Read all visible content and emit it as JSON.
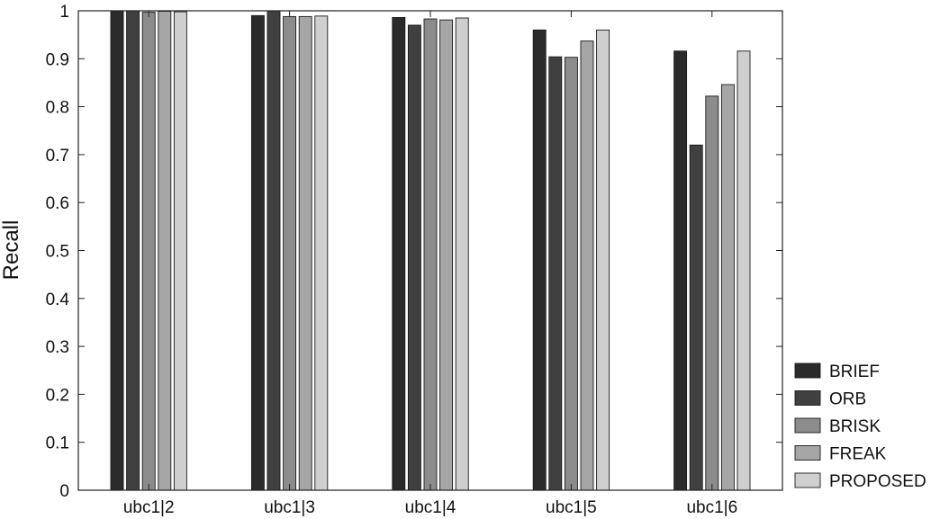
{
  "chart_data": {
    "type": "bar",
    "title": "",
    "xlabel": "",
    "ylabel": "Recall",
    "ylim": [
      0,
      1
    ],
    "yticks": [
      "0",
      "0.1",
      "0.2",
      "0.3",
      "0.4",
      "0.5",
      "0.6",
      "0.7",
      "0.8",
      "0.9",
      "1"
    ],
    "grid": false,
    "legend_position": "bottom-right",
    "categories": [
      "ubc1|2",
      "ubc1|3",
      "ubc1|4",
      "ubc1|5",
      "ubc1|6"
    ],
    "series": [
      {
        "name": "BRIEF",
        "color": "#2b2b2b",
        "values": [
          1.0,
          0.99,
          0.986,
          0.96,
          0.916
        ]
      },
      {
        "name": "ORB",
        "color": "#404040",
        "values": [
          1.0,
          1.0,
          0.97,
          0.904,
          0.72
        ]
      },
      {
        "name": "BRISK",
        "color": "#8c8c8c",
        "values": [
          0.997,
          0.988,
          0.983,
          0.903,
          0.822
        ]
      },
      {
        "name": "FREAK",
        "color": "#a6a6a6",
        "values": [
          0.999,
          0.988,
          0.981,
          0.937,
          0.846
        ]
      },
      {
        "name": "PROPOSED",
        "color": "#cfcfcf",
        "values": [
          0.998,
          0.989,
          0.985,
          0.96,
          0.916
        ]
      }
    ]
  }
}
